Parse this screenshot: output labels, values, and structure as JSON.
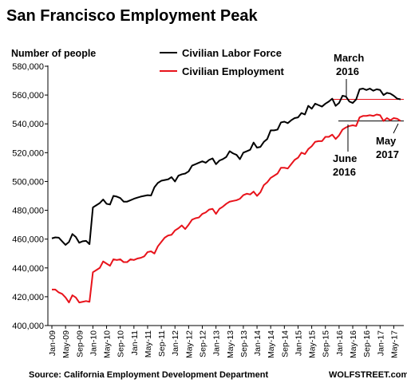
{
  "chart_data": {
    "type": "line",
    "title": "San Francisco Employment Peak",
    "ylabel": "Number of people",
    "ylim": [
      400000,
      580000
    ],
    "yticks": [
      400000,
      420000,
      440000,
      460000,
      480000,
      500000,
      520000,
      540000,
      560000,
      580000
    ],
    "ytick_labels": [
      "400,000",
      "420,000",
      "440,000",
      "460,000",
      "480,000",
      "500,000",
      "520,000",
      "540,000",
      "560,000",
      "580,000"
    ],
    "x_start": "Jan-09",
    "xtick_labels": [
      "Jan-09",
      "May-09",
      "Sep-09",
      "Jan-10",
      "May-10",
      "Sep-10",
      "Jan-11",
      "May-11",
      "Sep-11",
      "Jan-12",
      "May-12",
      "Sep-12",
      "Jan-13",
      "May-13",
      "Sep-13",
      "Jan-14",
      "May-14",
      "Sep-14",
      "Jan-15",
      "May-15",
      "Sep-15",
      "Jan-16",
      "May-16",
      "Sep-16",
      "Jan-17",
      "May-17"
    ],
    "grid": false,
    "legend": "top-center",
    "series": [
      {
        "name": "Civilian Labor Force",
        "color": "#000000",
        "values": [
          460500,
          461200,
          461000,
          458500,
          456000,
          458000,
          463500,
          461500,
          457500,
          458500,
          458800,
          456500,
          482000,
          483500,
          485000,
          487500,
          484500,
          484000,
          490000,
          489500,
          488500,
          486000,
          486000,
          487000,
          488000,
          488800,
          489500,
          490000,
          490500,
          490300,
          496000,
          499000,
          500500,
          501000,
          501500,
          503000,
          500000,
          504000,
          505000,
          505500,
          507000,
          511000,
          512000,
          513000,
          514000,
          513000,
          515000,
          516000,
          512000,
          514500,
          515500,
          517000,
          521000,
          519500,
          518500,
          515500,
          520000,
          521000,
          522000,
          527000,
          523500,
          524000,
          527500,
          529500,
          535500,
          535500,
          536000,
          541000,
          541500,
          540500,
          542500,
          544000,
          544500,
          547500,
          546500,
          552500,
          550500,
          554000,
          553000,
          552000,
          554000,
          555500,
          557500,
          552500,
          554500,
          559500,
          559000,
          555500,
          554500,
          557000,
          564000,
          564500,
          563500,
          564500,
          563000,
          564000,
          563500,
          560000,
          561500,
          561000,
          559500,
          557500,
          557000
        ]
      },
      {
        "name": "Civilian Employment",
        "color": "#e8131b",
        "values": [
          425000,
          425000,
          423000,
          422000,
          419500,
          416000,
          421000,
          419500,
          416000,
          416500,
          417000,
          416500,
          437000,
          438500,
          440000,
          444500,
          443000,
          441500,
          446000,
          445500,
          446000,
          444000,
          444000,
          446000,
          445500,
          446500,
          447000,
          448000,
          451000,
          451500,
          450000,
          455000,
          458000,
          461000,
          462500,
          463000,
          466000,
          467500,
          469500,
          467000,
          470000,
          473500,
          474500,
          475000,
          477500,
          478500,
          480500,
          481000,
          477500,
          481000,
          482500,
          484500,
          486000,
          486500,
          487000,
          488000,
          490500,
          491500,
          491000,
          493000,
          490000,
          492500,
          497500,
          499500,
          502500,
          504000,
          505500,
          509500,
          509500,
          509000,
          512000,
          515000,
          516500,
          520000,
          519000,
          522500,
          524500,
          527500,
          528000,
          528000,
          531000,
          531000,
          532500,
          529500,
          532000,
          536000,
          537500,
          538500,
          539000,
          538500,
          544500,
          545500,
          545500,
          546000,
          545500,
          546500,
          546000,
          542000,
          544000,
          542500,
          544000,
          543500,
          542000
        ]
      }
    ],
    "reference_lines": [
      {
        "value": 557000,
        "color": "#e8131b",
        "from_label": "March 2016"
      },
      {
        "value": 542000,
        "color": "#000000",
        "from_label": "June 2016"
      }
    ],
    "annotations": {
      "march": [
        "March",
        "2016"
      ],
      "june": [
        "June",
        "2016"
      ],
      "may": [
        "May",
        "2017"
      ]
    },
    "source": "Source: California Employment Development Department",
    "brand": "WOLFSTREET.com"
  }
}
